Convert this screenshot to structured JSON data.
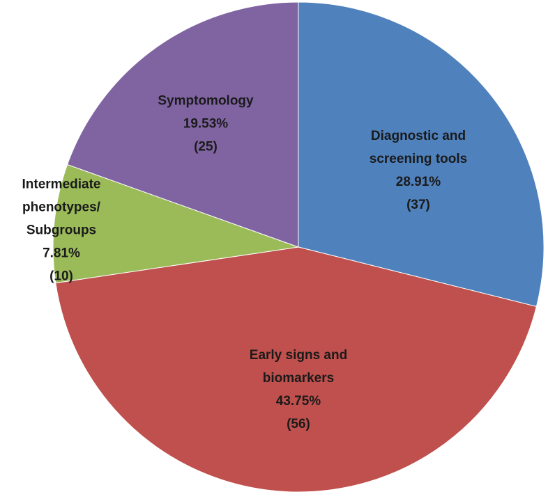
{
  "chart_data": {
    "type": "pie",
    "categories": [
      "Diagnostic and screening tools",
      "Early signs and biomarkers",
      "Intermediate phenotypes/ Subgroups",
      "Symptomology"
    ],
    "values": [
      37,
      56,
      10,
      25
    ],
    "value_labels": [
      "(37)",
      "(56)",
      "(10)",
      "(25)"
    ],
    "percent_labels": [
      "28.91%",
      "43.75%",
      "7.81%",
      "19.53%"
    ],
    "colors": [
      "#4f81bd",
      "#c0504d",
      "#9bbb59",
      "#8064a2"
    ]
  }
}
